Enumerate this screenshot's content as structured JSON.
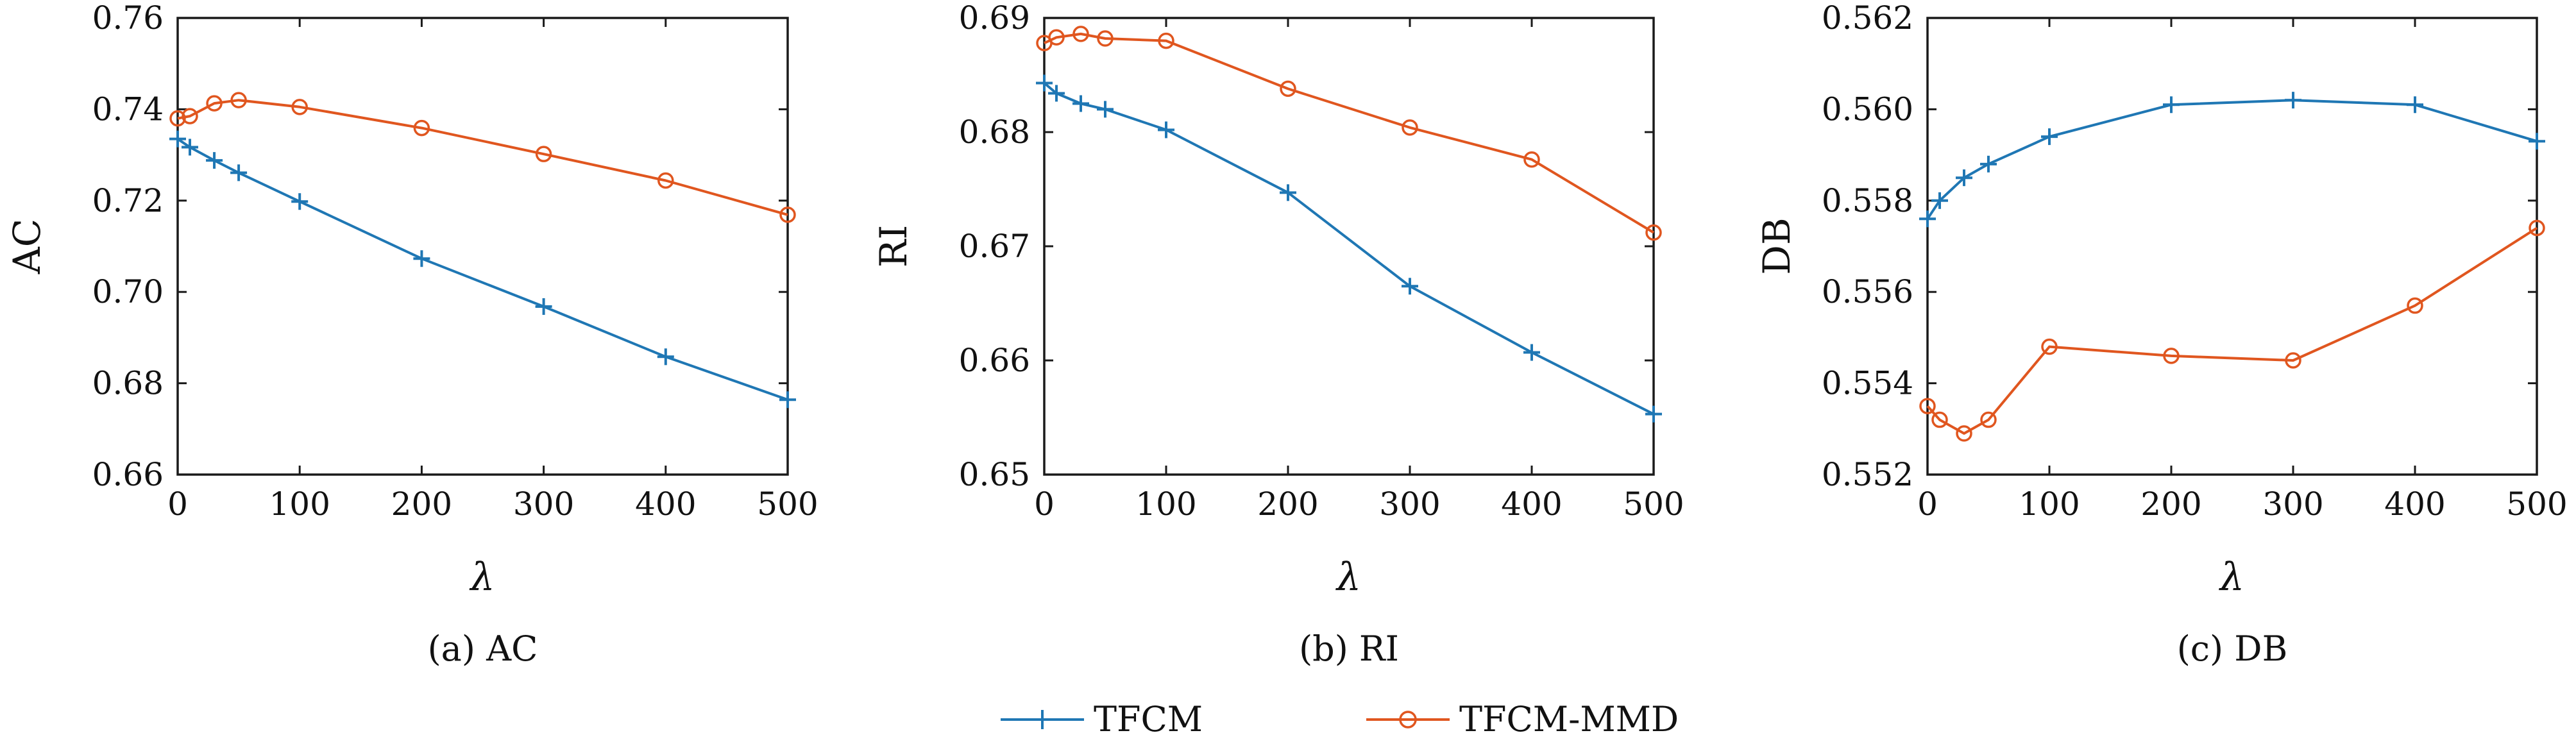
{
  "legend": {
    "items": [
      {
        "label": "TFCM",
        "color": "#1f77b4",
        "marker": "plus"
      },
      {
        "label": "TFCM-MMD",
        "color": "#e0561f",
        "marker": "circle"
      }
    ]
  },
  "chart_data": [
    {
      "type": "line",
      "caption": "(a) AC",
      "xlabel": "λ",
      "ylabel": "AC",
      "xlim": [
        0,
        500
      ],
      "ylim": [
        0.66,
        0.76
      ],
      "xticks": [
        0,
        100,
        200,
        300,
        400,
        500
      ],
      "xtick_labels": [
        "0",
        "100",
        "200",
        "300",
        "400",
        "500"
      ],
      "yticks": [
        0.66,
        0.68,
        0.7,
        0.72,
        0.74,
        0.76
      ],
      "ytick_labels": [
        "0.66",
        "0.68",
        "0.70",
        "0.72",
        "0.74",
        "0.76"
      ],
      "grid": false,
      "x": [
        0,
        10,
        30,
        50,
        100,
        200,
        300,
        400,
        500
      ],
      "series": [
        {
          "name": "TFCM",
          "color": "#1f77b4",
          "marker": "plus",
          "values": [
            0.7335,
            0.7317,
            0.7288,
            0.7261,
            0.7198,
            0.7073,
            0.6968,
            0.6858,
            0.6764
          ]
        },
        {
          "name": "TFCM-MMD",
          "color": "#e0561f",
          "marker": "circle",
          "values": [
            0.738,
            0.7385,
            0.7413,
            0.742,
            0.7405,
            0.7359,
            0.7302,
            0.7244,
            0.7169
          ]
        }
      ]
    },
    {
      "type": "line",
      "caption": "(b) RI",
      "xlabel": "λ",
      "ylabel": "RI",
      "xlim": [
        0,
        500
      ],
      "ylim": [
        0.65,
        0.69
      ],
      "xticks": [
        0,
        100,
        200,
        300,
        400,
        500
      ],
      "xtick_labels": [
        "0",
        "100",
        "200",
        "300",
        "400",
        "500"
      ],
      "yticks": [
        0.65,
        0.66,
        0.67,
        0.68,
        0.69
      ],
      "ytick_labels": [
        "0.65",
        "0.66",
        "0.67",
        "0.68",
        "0.69"
      ],
      "grid": false,
      "x": [
        0,
        10,
        30,
        50,
        100,
        200,
        300,
        400,
        500
      ],
      "series": [
        {
          "name": "TFCM",
          "color": "#1f77b4",
          "marker": "plus",
          "values": [
            0.6843,
            0.6834,
            0.6825,
            0.682,
            0.6802,
            0.6747,
            0.6665,
            0.6607,
            0.6553
          ]
        },
        {
          "name": "TFCM-MMD",
          "color": "#e0561f",
          "marker": "circle",
          "values": [
            0.6878,
            0.6883,
            0.6886,
            0.6882,
            0.688,
            0.6838,
            0.6804,
            0.6776,
            0.6712
          ]
        }
      ]
    },
    {
      "type": "line",
      "caption": "(c) DB",
      "xlabel": "λ",
      "ylabel": "DB",
      "xlim": [
        0,
        500
      ],
      "ylim": [
        0.552,
        0.562
      ],
      "xticks": [
        0,
        100,
        200,
        300,
        400,
        500
      ],
      "xtick_labels": [
        "0",
        "100",
        "200",
        "300",
        "400",
        "500"
      ],
      "yticks": [
        0.552,
        0.554,
        0.556,
        0.558,
        0.56,
        0.562
      ],
      "ytick_labels": [
        "0.552",
        "0.554",
        "0.556",
        "0.558",
        "0.560",
        "0.562"
      ],
      "grid": false,
      "x": [
        0,
        10,
        30,
        50,
        100,
        200,
        300,
        400,
        500
      ],
      "series": [
        {
          "name": "TFCM",
          "color": "#1f77b4",
          "marker": "plus",
          "values": [
            0.5576,
            0.558,
            0.5585,
            0.5588,
            0.5594,
            0.5601,
            0.5602,
            0.5601,
            0.5593
          ]
        },
        {
          "name": "TFCM-MMD",
          "color": "#e0561f",
          "marker": "circle",
          "values": [
            0.5535,
            0.5532,
            0.5529,
            0.5532,
            0.5548,
            0.5546,
            0.5545,
            0.5557,
            0.5574
          ]
        }
      ]
    }
  ]
}
